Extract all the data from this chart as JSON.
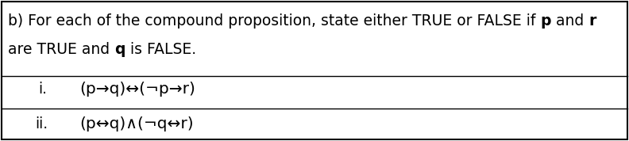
{
  "background_color": "#ffffff",
  "border_color": "#000000",
  "line1_normal": "b) For each of the compound proposition, state either TRUE or FALSE if ",
  "line1_bold1": "p",
  "line1_normal2": " and ",
  "line1_bold2": "r",
  "line2_normal1": "are TRUE and ",
  "line2_bold1": "q",
  "line2_normal2": " is FALSE.",
  "row_i_label": "i.",
  "row_i_formula": "(p→q)↔(¬p→r)",
  "row_ii_label": "ii.",
  "row_ii_formula": "(p↔q)∧(¬q↔r)",
  "font_size": 13.5,
  "font_size_formula": 14.5,
  "figwidth": 7.92,
  "figheight": 1.78,
  "dpi": 100
}
